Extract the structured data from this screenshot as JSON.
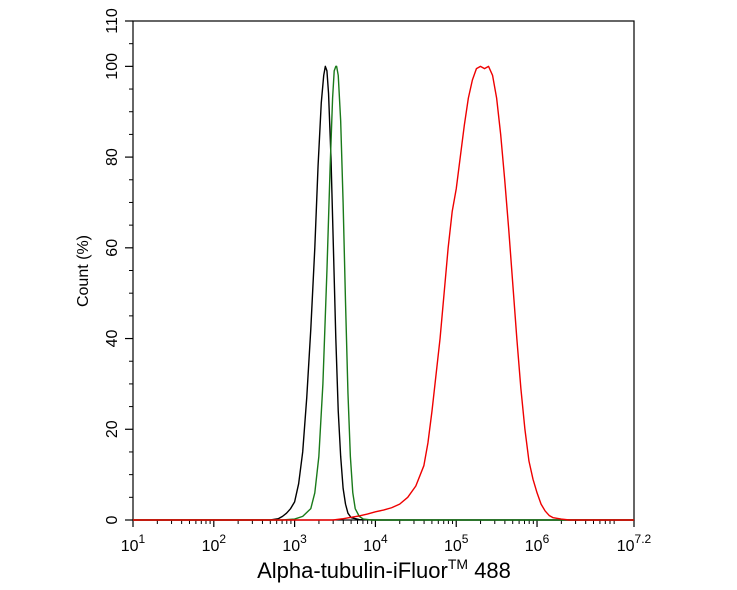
{
  "chart_data": {
    "type": "line",
    "title": "",
    "xlabel": "Alpha-tubulin-iFluor",
    "xlabel_superscript": "TM",
    "xlabel_suffix": " 488",
    "ylabel": "Count  (%)",
    "x_scale": "log",
    "xlim": [
      10,
      15848932
    ],
    "ylim": [
      0,
      110
    ],
    "grid": false,
    "legend": "none",
    "x_ticks": [
      {
        "value": 10,
        "base": "10",
        "exp": "1"
      },
      {
        "value": 100,
        "base": "10",
        "exp": "2"
      },
      {
        "value": 1000,
        "base": "10",
        "exp": "3"
      },
      {
        "value": 10000,
        "base": "10",
        "exp": "4"
      },
      {
        "value": 100000,
        "base": "10",
        "exp": "5"
      },
      {
        "value": 1000000,
        "base": "10",
        "exp": "6"
      },
      {
        "value": 15848932,
        "base": "10",
        "exp": "7.2"
      }
    ],
    "y_ticks": [
      {
        "value": 0,
        "label": "0"
      },
      {
        "value": 20,
        "label": "20"
      },
      {
        "value": 40,
        "label": "40"
      },
      {
        "value": 60,
        "label": "60"
      },
      {
        "value": 80,
        "label": "80"
      },
      {
        "value": 100,
        "label": "100"
      },
      {
        "value": 110,
        "label": "110"
      }
    ],
    "series": [
      {
        "color": "#000000",
        "points": [
          [
            10,
            0
          ],
          [
            500,
            0
          ],
          [
            631,
            0.3
          ],
          [
            708,
            0.8
          ],
          [
            794,
            1.5
          ],
          [
            891,
            2.5
          ],
          [
            1000,
            4
          ],
          [
            1122,
            8
          ],
          [
            1259,
            15
          ],
          [
            1413,
            27
          ],
          [
            1585,
            42
          ],
          [
            1778,
            60
          ],
          [
            1950,
            78
          ],
          [
            2138,
            92
          ],
          [
            2291,
            98
          ],
          [
            2399,
            100
          ],
          [
            2512,
            99
          ],
          [
            2630,
            94
          ],
          [
            2818,
            80
          ],
          [
            3020,
            60
          ],
          [
            3236,
            40
          ],
          [
            3467,
            24
          ],
          [
            3715,
            14
          ],
          [
            3981,
            7
          ],
          [
            4266,
            3.5
          ],
          [
            4571,
            1.5
          ],
          [
            5012,
            0.5
          ],
          [
            6310,
            0.1
          ],
          [
            10000,
            0
          ],
          [
            15848932,
            0
          ]
        ]
      },
      {
        "color": "#1a7a1a",
        "points": [
          [
            10,
            0
          ],
          [
            700,
            0
          ],
          [
            1000,
            0.2
          ],
          [
            1259,
            0.8
          ],
          [
            1585,
            2.5
          ],
          [
            1778,
            6
          ],
          [
            1995,
            14
          ],
          [
            2239,
            30
          ],
          [
            2512,
            55
          ],
          [
            2754,
            78
          ],
          [
            2951,
            93
          ],
          [
            3090,
            99
          ],
          [
            3236,
            100
          ],
          [
            3311,
            100
          ],
          [
            3467,
            98
          ],
          [
            3715,
            88
          ],
          [
            3981,
            70
          ],
          [
            4266,
            48
          ],
          [
            4571,
            28
          ],
          [
            4898,
            14
          ],
          [
            5248,
            6
          ],
          [
            5623,
            2.5
          ],
          [
            6310,
            0.8
          ],
          [
            7079,
            0.2
          ],
          [
            8913,
            0
          ],
          [
            15848932,
            0
          ]
        ]
      },
      {
        "color": "#ee0000",
        "points": [
          [
            10,
            0
          ],
          [
            3000,
            0
          ],
          [
            4000,
            0.3
          ],
          [
            5000,
            0.6
          ],
          [
            6300,
            0.9
          ],
          [
            7943,
            1.3
          ],
          [
            10000,
            1.8
          ],
          [
            12589,
            2.2
          ],
          [
            15849,
            2.7
          ],
          [
            19953,
            3.5
          ],
          [
            25119,
            5
          ],
          [
            31623,
            7.5
          ],
          [
            39811,
            12
          ],
          [
            44668,
            17
          ],
          [
            50119,
            24
          ],
          [
            56234,
            32
          ],
          [
            63096,
            40
          ],
          [
            70795,
            50
          ],
          [
            79433,
            60
          ],
          [
            89125,
            68
          ],
          [
            100000,
            73
          ],
          [
            112202,
            80
          ],
          [
            125893,
            87
          ],
          [
            141254,
            93
          ],
          [
            158489,
            97
          ],
          [
            177828,
            99.5
          ],
          [
            199526,
            100
          ],
          [
            223872,
            99.5
          ],
          [
            251189,
            100
          ],
          [
            281838,
            98
          ],
          [
            316228,
            93
          ],
          [
            354813,
            85
          ],
          [
            398107,
            75
          ],
          [
            446684,
            64
          ],
          [
            501187,
            52
          ],
          [
            562341,
            40
          ],
          [
            630957,
            29
          ],
          [
            707946,
            20
          ],
          [
            794328,
            13
          ],
          [
            891251,
            9
          ],
          [
            1000000,
            6
          ],
          [
            1122018,
            3.5
          ],
          [
            1258925,
            2
          ],
          [
            1412538,
            1
          ],
          [
            1584893,
            0.5
          ],
          [
            1995262,
            0.2
          ],
          [
            2511886,
            0
          ],
          [
            15848932,
            0
          ]
        ]
      }
    ]
  }
}
